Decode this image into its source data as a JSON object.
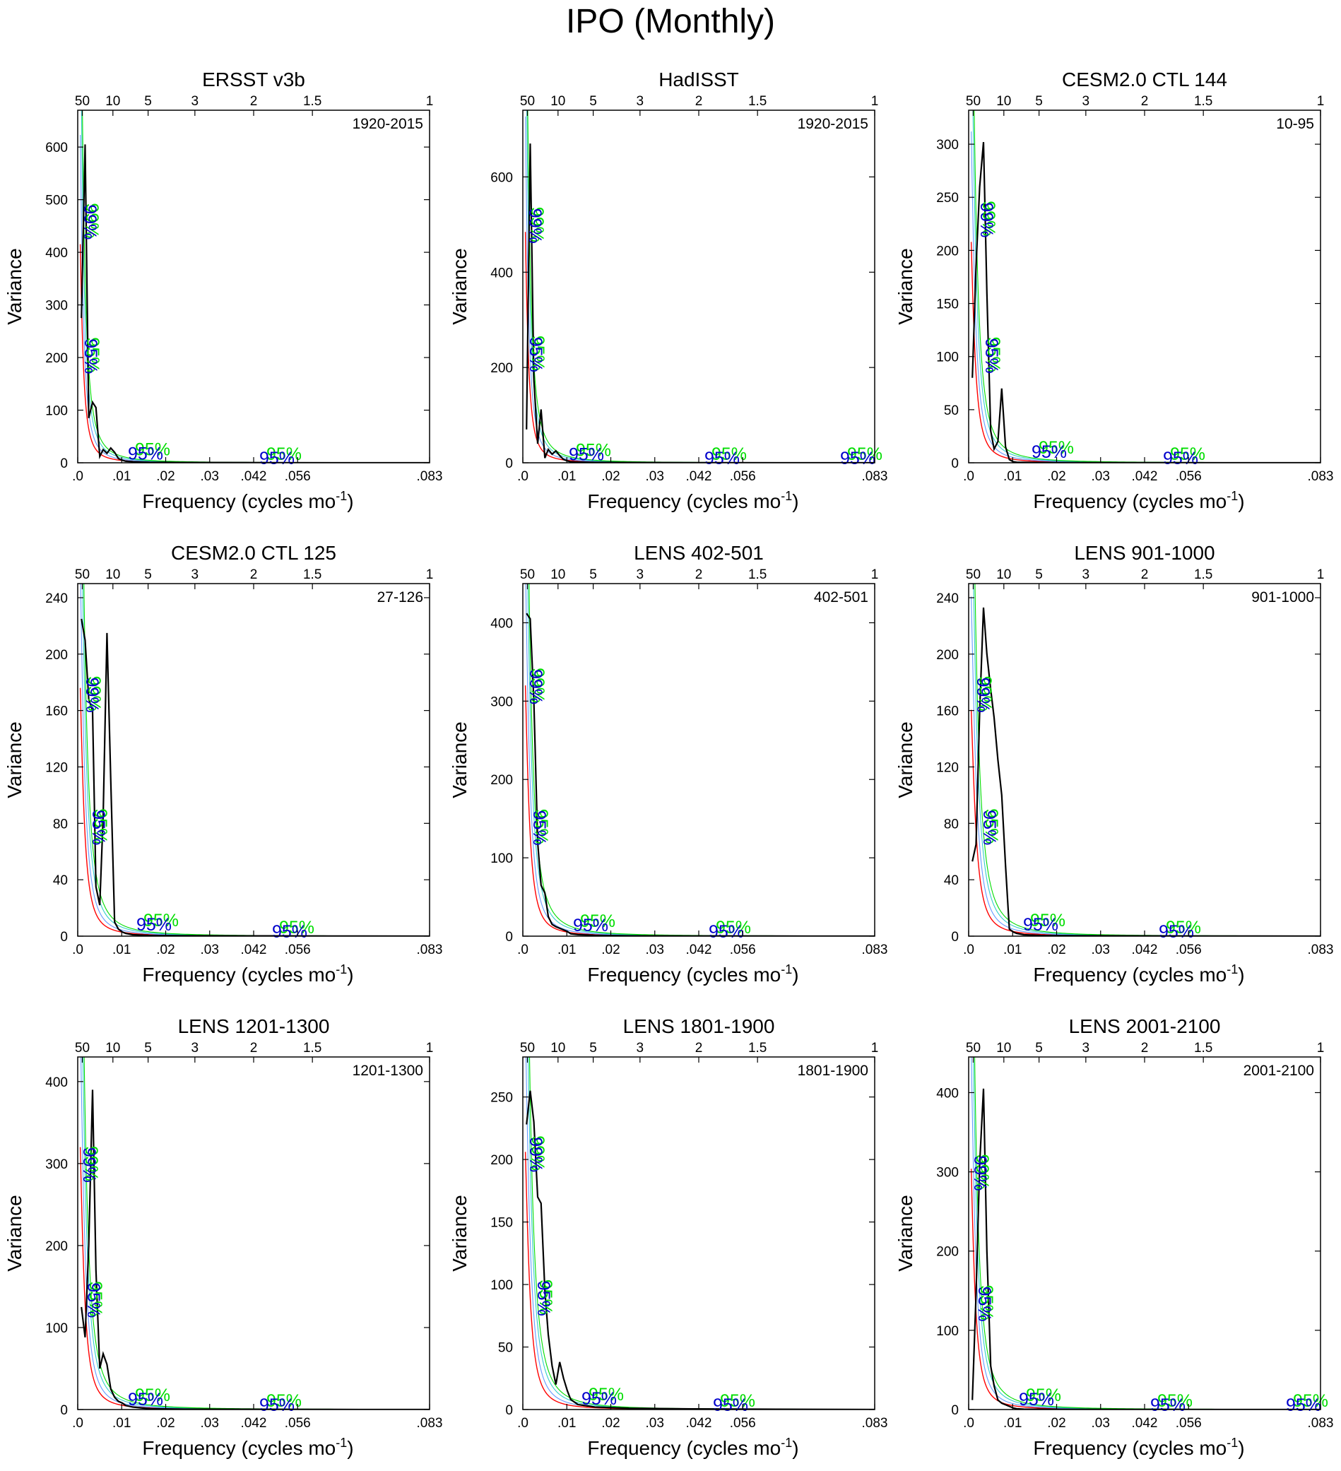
{
  "figure_title": "IPO (Monthly)",
  "colors": {
    "spectrum": "#000000",
    "red_noise": "#ff0000",
    "sig_blue": "#0000cc",
    "sig_green": "#00dd00",
    "sig_cyan": "#33cccc",
    "mid_blue": "#6699ff"
  },
  "chart_data": [
    {
      "type": "line",
      "title": "ERSST v3b",
      "period": "1920-2015",
      "xlabel": "Frequency (cycles mo",
      "xlabel_sup": "-1",
      "xlabel_end": ")",
      "ylabel": "Variance",
      "xlim": [
        0,
        0.083
      ],
      "x_ticks": [
        ".0",
        ".01",
        ".02",
        ".03",
        ".042",
        ".056",
        ".083"
      ],
      "top_ticks": [
        "50",
        "10",
        "5",
        "3",
        "2",
        "1.5",
        "1"
      ],
      "ylim": [
        0,
        670
      ],
      "y_ticks": [
        0,
        100,
        200,
        300,
        400,
        500,
        600
      ],
      "spectrum": {
        "x": [
          0.00087,
          0.00174,
          0.0026,
          0.0035,
          0.0043,
          0.0052,
          0.006,
          0.0069,
          0.0078,
          0.0087,
          0.0096,
          0.0105,
          0.0113,
          0.013,
          0.017,
          0.025,
          0.04,
          0.06,
          0.083
        ],
        "y": [
          275,
          605,
          85,
          115,
          105,
          12,
          25,
          18,
          28,
          20,
          8,
          5,
          3,
          2,
          1,
          0.5,
          0.3,
          0.1,
          0
        ]
      },
      "red_noise": {
        "scale": 600,
        "decay": 0.0009
      },
      "bounds": {
        "bound_scale_1": 1.5,
        "bound_scale_2": 2.2,
        "bound_scale_3": 2.8
      },
      "sig_labels": [
        {
          "text": "99%",
          "x": 0.002,
          "y": 460,
          "rotated": true
        },
        {
          "text": "95%",
          "x": 0.0022,
          "y": 205,
          "rotated": true
        },
        {
          "text": "95%",
          "x": 0.016,
          "y": 9
        },
        {
          "text": "95%",
          "x": 0.047,
          "y": 0
        }
      ]
    },
    {
      "type": "line",
      "title": "HadISST",
      "period": "1920-2015",
      "xlabel": "Frequency (cycles mo",
      "xlabel_sup": "-1",
      "xlabel_end": ")",
      "ylabel": "Variance",
      "xlim": [
        0,
        0.083
      ],
      "x_ticks": [
        ".0",
        ".01",
        ".02",
        ".03",
        ".042",
        ".056",
        ".083"
      ],
      "top_ticks": [
        "50",
        "10",
        "5",
        "3",
        "2",
        "1.5",
        "1"
      ],
      "ylim": [
        0,
        740
      ],
      "y_ticks": [
        0,
        200,
        400,
        600
      ],
      "spectrum": {
        "x": [
          0.00087,
          0.00174,
          0.0026,
          0.0035,
          0.0043,
          0.0052,
          0.006,
          0.0069,
          0.0078,
          0.0087,
          0.0096,
          0.0105,
          0.0113,
          0.013,
          0.017,
          0.025,
          0.04,
          0.06,
          0.083
        ],
        "y": [
          70,
          670,
          175,
          40,
          112,
          10,
          28,
          18,
          25,
          15,
          7,
          4,
          2,
          1.5,
          1,
          0.5,
          0.3,
          0.1,
          0
        ]
      },
      "red_noise": {
        "scale": 700,
        "decay": 0.0009
      },
      "bounds": {
        "bound_scale_1": 1.5,
        "bound_scale_2": 2.2,
        "bound_scale_3": 2.8
      },
      "sig_labels": [
        {
          "text": "99%",
          "x": 0.002,
          "y": 500,
          "rotated": true
        },
        {
          "text": "95%",
          "x": 0.0022,
          "y": 230,
          "rotated": true
        },
        {
          "text": "95%",
          "x": 0.015,
          "y": 8
        },
        {
          "text": "95%",
          "x": 0.047,
          "y": 0
        },
        {
          "text": "95%",
          "x": 0.079,
          "y": 0
        }
      ]
    },
    {
      "type": "line",
      "title": "CESM2.0 CTL 144",
      "period": "10-95",
      "xlabel": "Frequency (cycles mo",
      "xlabel_sup": "-1",
      "xlabel_end": ")",
      "ylabel": "Variance",
      "xlim": [
        0,
        0.083
      ],
      "x_ticks": [
        ".0",
        ".01",
        ".02",
        ".03",
        ".042",
        ".056",
        ".083"
      ],
      "top_ticks": [
        "50",
        "10",
        "5",
        "3",
        "2",
        "1.5",
        "1"
      ],
      "ylim": [
        0,
        332
      ],
      "y_ticks": [
        0,
        50,
        100,
        150,
        200,
        250,
        300
      ],
      "spectrum": {
        "x": [
          0.00087,
          0.00174,
          0.0026,
          0.0035,
          0.0043,
          0.0052,
          0.006,
          0.0069,
          0.0078,
          0.0087,
          0.0096,
          0.0105,
          0.0113,
          0.013,
          0.017,
          0.025,
          0.04,
          0.06,
          0.083
        ],
        "y": [
          80,
          185,
          260,
          302,
          160,
          30,
          13,
          20,
          70,
          15,
          3,
          1,
          0.5,
          0.4,
          0.3,
          0.2,
          0.1,
          0.05,
          0
        ]
      },
      "red_noise": {
        "scale": 260,
        "decay": 0.0012
      },
      "bounds": {
        "bound_scale_1": 1.5,
        "bound_scale_2": 2.2,
        "bound_scale_3": 2.8
      },
      "sig_labels": [
        {
          "text": "99%",
          "x": 0.0033,
          "y": 230,
          "rotated": true
        },
        {
          "text": "95%",
          "x": 0.0045,
          "y": 102,
          "rotated": true
        },
        {
          "text": "95%",
          "x": 0.019,
          "y": 6
        },
        {
          "text": "95%",
          "x": 0.05,
          "y": 0
        }
      ]
    },
    {
      "type": "line",
      "title": "CESM2.0 CTL 125",
      "period": "27-126",
      "xlabel": "Frequency (cycles mo",
      "xlabel_sup": "-1",
      "xlabel_end": ")",
      "ylabel": "Variance",
      "xlim": [
        0,
        0.083
      ],
      "x_ticks": [
        ".0",
        ".01",
        ".02",
        ".03",
        ".042",
        ".056",
        ".083"
      ],
      "top_ticks": [
        "50",
        "10",
        "5",
        "3",
        "2",
        "1.5",
        "1"
      ],
      "ylim": [
        0,
        250
      ],
      "y_ticks": [
        0,
        40,
        80,
        120,
        160,
        200,
        240
      ],
      "spectrum": {
        "x": [
          0.00087,
          0.00174,
          0.0026,
          0.0035,
          0.0043,
          0.0052,
          0.006,
          0.0069,
          0.0078,
          0.0087,
          0.0096,
          0.0105,
          0.0113,
          0.013,
          0.017,
          0.025,
          0.04,
          0.06,
          0.083
        ],
        "y": [
          225,
          210,
          168,
          160,
          35,
          22,
          85,
          215,
          110,
          10,
          5,
          3,
          2,
          1,
          0.5,
          0.3,
          0.2,
          0.1,
          0
        ]
      },
      "red_noise": {
        "scale": 220,
        "decay": 0.0012
      },
      "bounds": {
        "bound_scale_1": 1.5,
        "bound_scale_2": 2.2,
        "bound_scale_3": 2.8
      },
      "sig_labels": [
        {
          "text": "99%",
          "x": 0.0025,
          "y": 172,
          "rotated": true
        },
        {
          "text": "95%",
          "x": 0.004,
          "y": 78,
          "rotated": true
        },
        {
          "text": "95%",
          "x": 0.018,
          "y": 5
        },
        {
          "text": "95%",
          "x": 0.05,
          "y": 0
        }
      ]
    },
    {
      "type": "line",
      "title": "LENS 402-501",
      "period": "402-501",
      "xlabel": "Frequency (cycles mo",
      "xlabel_sup": "-1",
      "xlabel_end": ")",
      "ylabel": "Variance",
      "xlim": [
        0,
        0.083
      ],
      "x_ticks": [
        ".0",
        ".01",
        ".02",
        ".03",
        ".042",
        ".056",
        ".083"
      ],
      "top_ticks": [
        "50",
        "10",
        "5",
        "3",
        "2",
        "1.5",
        "1"
      ],
      "ylim": [
        0,
        450
      ],
      "y_ticks": [
        0,
        100,
        200,
        300,
        400
      ],
      "spectrum": {
        "x": [
          0.00087,
          0.00174,
          0.0026,
          0.0035,
          0.0043,
          0.0052,
          0.006,
          0.0069,
          0.0078,
          0.0087,
          0.0096,
          0.0105,
          0.0113,
          0.013,
          0.017,
          0.025,
          0.04,
          0.06,
          0.083
        ],
        "y": [
          412,
          405,
          300,
          120,
          65,
          55,
          25,
          15,
          12,
          10,
          8,
          6,
          3,
          2,
          1,
          0.5,
          0.3,
          0.1,
          0
        ]
      },
      "red_noise": {
        "scale": 400,
        "decay": 0.0012
      },
      "bounds": {
        "bound_scale_1": 1.5,
        "bound_scale_2": 2.2,
        "bound_scale_3": 2.8
      },
      "sig_labels": [
        {
          "text": "99%",
          "x": 0.0022,
          "y": 320,
          "rotated": true
        },
        {
          "text": "95%",
          "x": 0.003,
          "y": 140,
          "rotated": true
        },
        {
          "text": "95%",
          "x": 0.016,
          "y": 8
        },
        {
          "text": "95%",
          "x": 0.048,
          "y": 0
        }
      ]
    },
    {
      "type": "line",
      "title": "LENS 901-1000",
      "period": "901-1000",
      "xlabel": "Frequency (cycles mo",
      "xlabel_sup": "-1",
      "xlabel_end": ")",
      "ylabel": "Variance",
      "xlim": [
        0,
        0.083
      ],
      "x_ticks": [
        ".0",
        ".01",
        ".02",
        ".03",
        ".042",
        ".056",
        ".083"
      ],
      "top_ticks": [
        "50",
        "10",
        "5",
        "3",
        "2",
        "1.5",
        "1"
      ],
      "ylim": [
        0,
        250
      ],
      "y_ticks": [
        0,
        40,
        80,
        120,
        160,
        200,
        240
      ],
      "spectrum": {
        "x": [
          0.00087,
          0.00174,
          0.0026,
          0.0035,
          0.0043,
          0.0052,
          0.006,
          0.0069,
          0.0078,
          0.0087,
          0.0096,
          0.0105,
          0.0113,
          0.013,
          0.017,
          0.025,
          0.04,
          0.06,
          0.083
        ],
        "y": [
          53,
          65,
          160,
          233,
          200,
          175,
          155,
          125,
          100,
          50,
          5,
          3,
          2,
          1,
          0.5,
          0.3,
          0.2,
          0.1,
          0
        ]
      },
      "red_noise": {
        "scale": 190,
        "decay": 0.0014
      },
      "bounds": {
        "bound_scale_1": 1.5,
        "bound_scale_2": 2.2,
        "bound_scale_3": 2.8
      },
      "sig_labels": [
        {
          "text": "99%",
          "x": 0.0025,
          "y": 172,
          "rotated": true
        },
        {
          "text": "95%",
          "x": 0.004,
          "y": 78,
          "rotated": true
        },
        {
          "text": "95%",
          "x": 0.017,
          "y": 5
        },
        {
          "text": "95%",
          "x": 0.049,
          "y": 0
        }
      ]
    },
    {
      "type": "line",
      "title": "LENS 1201-1300",
      "period": "1201-1300",
      "xlabel": "Frequency (cycles mo",
      "xlabel_sup": "-1",
      "xlabel_end": ")",
      "ylabel": "Variance",
      "xlim": [
        0,
        0.083
      ],
      "x_ticks": [
        ".0",
        ".01",
        ".02",
        ".03",
        ".042",
        ".056",
        ".083"
      ],
      "top_ticks": [
        "50",
        "10",
        "5",
        "3",
        "2",
        "1.5",
        "1"
      ],
      "ylim": [
        0,
        430
      ],
      "y_ticks": [
        0,
        100,
        200,
        300,
        400
      ],
      "spectrum": {
        "x": [
          0.00087,
          0.00174,
          0.0026,
          0.0035,
          0.0043,
          0.0052,
          0.006,
          0.0069,
          0.0078,
          0.0087,
          0.0096,
          0.0105,
          0.0113,
          0.013,
          0.017,
          0.025,
          0.04,
          0.06,
          0.083
        ],
        "y": [
          125,
          88,
          200,
          390,
          170,
          50,
          68,
          55,
          25,
          15,
          10,
          8,
          5,
          3,
          1,
          0.5,
          0.3,
          0.1,
          0
        ]
      },
      "red_noise": {
        "scale": 400,
        "decay": 0.0012
      },
      "bounds": {
        "bound_scale_1": 1.5,
        "bound_scale_2": 2.2,
        "bound_scale_3": 2.8
      },
      "sig_labels": [
        {
          "text": "99%",
          "x": 0.0018,
          "y": 300,
          "rotated": true
        },
        {
          "text": "95%",
          "x": 0.0028,
          "y": 135,
          "rotated": true
        },
        {
          "text": "95%",
          "x": 0.016,
          "y": 7
        },
        {
          "text": "95%",
          "x": 0.047,
          "y": 0
        }
      ]
    },
    {
      "type": "line",
      "title": "LENS 1801-1900",
      "period": "1801-1900",
      "xlabel": "Frequency (cycles mo",
      "xlabel_sup": "-1",
      "xlabel_end": ")",
      "ylabel": "Variance",
      "xlim": [
        0,
        0.083
      ],
      "x_ticks": [
        ".0",
        ".01",
        ".02",
        ".03",
        ".042",
        ".056",
        ".083"
      ],
      "top_ticks": [
        "50",
        "10",
        "5",
        "3",
        "2",
        "1.5",
        "1"
      ],
      "ylim": [
        0,
        282
      ],
      "y_ticks": [
        0,
        50,
        100,
        150,
        200,
        250
      ],
      "spectrum": {
        "x": [
          0.00087,
          0.00174,
          0.0026,
          0.0035,
          0.0043,
          0.0052,
          0.006,
          0.0069,
          0.0078,
          0.0087,
          0.0096,
          0.0105,
          0.0113,
          0.013,
          0.017,
          0.025,
          0.04,
          0.06,
          0.083
        ],
        "y": [
          228,
          255,
          230,
          170,
          165,
          95,
          60,
          35,
          20,
          38,
          25,
          15,
          8,
          4,
          2,
          1,
          0.5,
          0.2,
          0
        ]
      },
      "red_noise": {
        "scale": 250,
        "decay": 0.0013
      },
      "bounds": {
        "bound_scale_1": 1.5,
        "bound_scale_2": 2.2,
        "bound_scale_3": 2.8
      },
      "sig_labels": [
        {
          "text": "99%",
          "x": 0.0022,
          "y": 205,
          "rotated": true
        },
        {
          "text": "95%",
          "x": 0.004,
          "y": 90,
          "rotated": true
        },
        {
          "text": "95%",
          "x": 0.018,
          "y": 5
        },
        {
          "text": "95%",
          "x": 0.049,
          "y": 0
        }
      ]
    },
    {
      "type": "line",
      "title": "LENS 2001-2100",
      "period": "2001-2100",
      "xlabel": "Frequency (cycles mo",
      "xlabel_sup": "-1",
      "xlabel_end": ")",
      "ylabel": "Variance",
      "xlim": [
        0,
        0.083
      ],
      "x_ticks": [
        ".0",
        ".01",
        ".02",
        ".03",
        ".042",
        ".056",
        ".083"
      ],
      "top_ticks": [
        "50",
        "10",
        "5",
        "3",
        "2",
        "1.5",
        "1"
      ],
      "ylim": [
        0,
        445
      ],
      "y_ticks": [
        0,
        100,
        200,
        300,
        400
      ],
      "spectrum": {
        "x": [
          0.00087,
          0.00174,
          0.0026,
          0.0035,
          0.0043,
          0.0052,
          0.006,
          0.0069,
          0.0078,
          0.0087,
          0.0096,
          0.0105,
          0.0113,
          0.013,
          0.017,
          0.025,
          0.04,
          0.06,
          0.083
        ],
        "y": [
          12,
          145,
          310,
          405,
          200,
          55,
          30,
          12,
          8,
          6,
          4,
          2,
          1,
          0.5,
          0.3,
          0.2,
          0.1,
          0.05,
          0
        ]
      },
      "red_noise": {
        "scale": 380,
        "decay": 0.0012
      },
      "bounds": {
        "bound_scale_1": 1.5,
        "bound_scale_2": 2.2,
        "bound_scale_3": 2.8
      },
      "sig_labels": [
        {
          "text": "99%",
          "x": 0.0018,
          "y": 300,
          "rotated": true
        },
        {
          "text": "95%",
          "x": 0.0028,
          "y": 135,
          "rotated": true
        },
        {
          "text": "95%",
          "x": 0.016,
          "y": 7
        },
        {
          "text": "95%",
          "x": 0.047,
          "y": 0
        },
        {
          "text": "95%",
          "x": 0.079,
          "y": 0
        }
      ]
    }
  ]
}
